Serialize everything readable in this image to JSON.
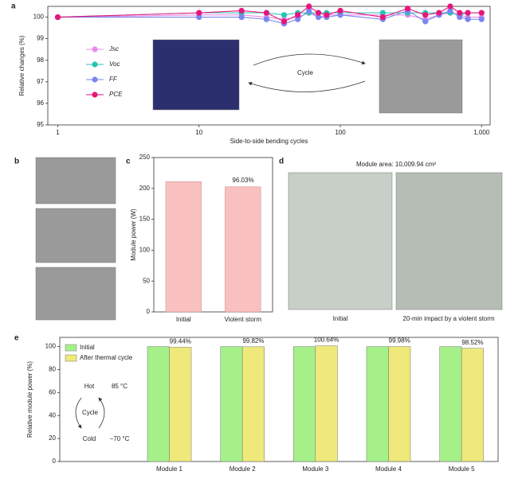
{
  "panel_labels": [
    "a",
    "b",
    "c",
    "d",
    "e"
  ],
  "panel_d": {
    "title": "Module area: 10,009.94 cm²",
    "captions": [
      "Initial",
      "20-min impact by a violent storm"
    ]
  },
  "chart_data": [
    {
      "type": "line",
      "x_label": "Side-to-side bending cycles",
      "y_label": "Relative changes (%)",
      "log_x": true,
      "annotations": [
        "Cycle"
      ],
      "x": [
        1,
        10,
        20,
        30,
        40,
        50,
        60,
        70,
        80,
        100,
        200,
        300,
        400,
        500,
        600,
        700,
        800,
        1000
      ],
      "series": [
        {
          "name": "Jsc",
          "color": "#e98ce8",
          "values": [
            100,
            100.1,
            100.1,
            100.0,
            99.9,
            100.0,
            100.2,
            100.0,
            100.1,
            100.1,
            100.1,
            100.1,
            99.9,
            100.1,
            100.2,
            100.1,
            100.0,
            100.0
          ]
        },
        {
          "name": "Voc",
          "color": "#29c4b4",
          "values": [
            100,
            100.2,
            100.2,
            100.2,
            100.1,
            100.2,
            100.2,
            100.2,
            100.2,
            100.2,
            100.2,
            100.2,
            100.2,
            100.2,
            100.2,
            100.1,
            100.2,
            100.2
          ]
        },
        {
          "name": "FF",
          "color": "#7a86f0",
          "values": [
            100,
            100.0,
            100.0,
            99.9,
            99.7,
            99.9,
            100.3,
            100.0,
            100.0,
            100.1,
            99.9,
            100.3,
            99.8,
            100.1,
            100.3,
            100.0,
            99.9,
            99.9
          ]
        },
        {
          "name": "PCE",
          "color": "#e8157a",
          "values": [
            100,
            100.2,
            100.3,
            100.2,
            99.8,
            100.1,
            100.5,
            100.2,
            100.1,
            100.3,
            100.0,
            100.4,
            100.1,
            100.2,
            100.5,
            100.2,
            100.2,
            100.2
          ]
        }
      ],
      "xlim": [
        0.85,
        1150
      ],
      "xticks": [
        1,
        10,
        100,
        {
          "value": 1000,
          "label": "1,000"
        }
      ],
      "ylim": [
        95,
        100.5
      ],
      "yticks": [
        95,
        96,
        97,
        98,
        99,
        100
      ]
    },
    {
      "type": "bar",
      "y_label": "Module power (W)",
      "annotations": [
        "96.03%"
      ],
      "categories": [
        "Initial",
        "Violent storm"
      ],
      "values": [
        211,
        202.6
      ],
      "color": "#f9c0c0",
      "ylim": [
        0,
        250
      ],
      "yticks": [
        0,
        50,
        100,
        150,
        200,
        250
      ]
    },
    {
      "type": "bar",
      "y_label": "Relative module power (%)",
      "annotations": [
        "Hot",
        "85 °C",
        "Cycle",
        "Cold",
        "−70 °C"
      ],
      "categories": [
        "Module 1",
        "Module 2",
        "Module 3",
        "Module 4",
        "Module 5"
      ],
      "series": [
        {
          "name": "Initial",
          "color": "#a6f08a",
          "values": [
            100,
            100,
            100,
            100,
            100
          ]
        },
        {
          "name": "After thermal cycle",
          "color": "#eee97a",
          "values": [
            99.44,
            99.82,
            100.64,
            99.98,
            98.52
          ],
          "value_labels": [
            "99.44%",
            "99.82%",
            "100.64%",
            "99.98%",
            "98.52%"
          ]
        }
      ],
      "ylim": [
        0,
        108
      ],
      "yticks": [
        0,
        20,
        40,
        60,
        80,
        100
      ]
    }
  ]
}
